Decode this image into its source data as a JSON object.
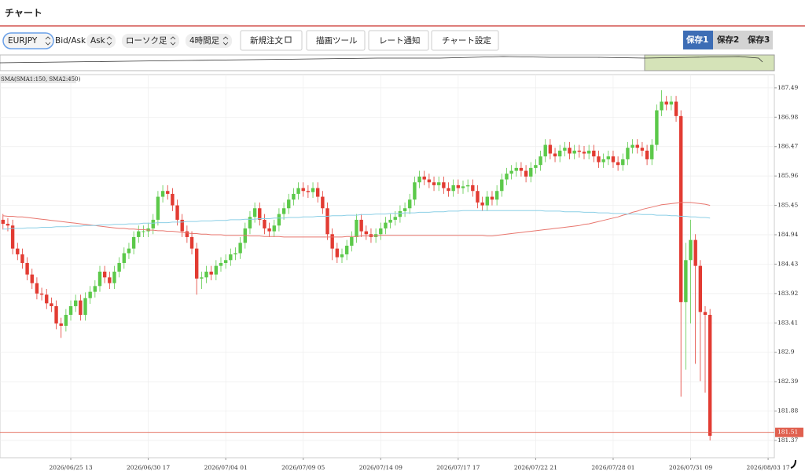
{
  "header": {
    "title": "チャート"
  },
  "toolbar": {
    "symbol": "EURJPY",
    "price_type_label": "Bid/Ask",
    "price_type": "Ask",
    "chart_style": "ローソク足",
    "timeframe": "4時間足",
    "buttons": [
      "新規注文",
      "描画ツール",
      "レート通知",
      "チャート設定"
    ],
    "saves": [
      "保存1",
      "保存2",
      "保存3"
    ]
  },
  "chart_data": {
    "type": "candlestick",
    "indicator_label": "SMA(SMA1:150, SMA2:450)",
    "categories": [
      null,
      null,
      null,
      null,
      null,
      null,
      null,
      null,
      null,
      null,
      null,
      null,
      null,
      null,
      "2026/06/25 13",
      null,
      null,
      null,
      null,
      null,
      null,
      null,
      null,
      null,
      null,
      null,
      null,
      null,
      null,
      null,
      "2026/06/30 17",
      null,
      null,
      null,
      null,
      null,
      null,
      null,
      null,
      null,
      null,
      null,
      null,
      null,
      null,
      null,
      "2026/07/04 01",
      null,
      null,
      null,
      null,
      null,
      null,
      null,
      null,
      null,
      null,
      null,
      null,
      null,
      null,
      null,
      "2026/07/09 05",
      null,
      null,
      null,
      null,
      null,
      null,
      null,
      null,
      null,
      null,
      null,
      null,
      null,
      null,
      null,
      "2026/07/14 09",
      null,
      null,
      null,
      null,
      null,
      null,
      null,
      null,
      null,
      null,
      null,
      null,
      null,
      null,
      null,
      "2026/07/17 17",
      null,
      null,
      null,
      null,
      null,
      null,
      null,
      null,
      null,
      null,
      null,
      null,
      null,
      null,
      null,
      "2026/07/22 21",
      null,
      null,
      null,
      null,
      null,
      null,
      null,
      null,
      null,
      null,
      null,
      null,
      null,
      null,
      null,
      "2026/07/28 01",
      null,
      null,
      null,
      null,
      null,
      null,
      null,
      null,
      null,
      null,
      null,
      null,
      null,
      null,
      null,
      "2026/07/31 09",
      null,
      null,
      null,
      null,
      null,
      null,
      null,
      null,
      null,
      null,
      null,
      null,
      null,
      null,
      null,
      "2026/08/03 17"
    ],
    "open": [
      185.2,
      185.13,
      185.1,
      184.7,
      184.6,
      184.45,
      184.25,
      184.1,
      183.92,
      183.9,
      183.75,
      183.7,
      183.4,
      183.36,
      183.55,
      183.7,
      183.8,
      183.55,
      183.84,
      183.95,
      184.05,
      184.3,
      184.2,
      184.1,
      184.3,
      184.45,
      184.62,
      184.7,
      184.9,
      185.0,
      185.0,
      185.05,
      185.2,
      185.6,
      185.7,
      185.65,
      185.45,
      185.2,
      185.0,
      184.9,
      184.7,
      184.18,
      184.2,
      184.3,
      184.25,
      184.4,
      184.45,
      184.5,
      184.6,
      184.62,
      184.8,
      185.05,
      185.25,
      185.4,
      185.2,
      185.05,
      185.0,
      185.1,
      185.3,
      185.4,
      185.55,
      185.65,
      185.75,
      185.7,
      185.68,
      185.75,
      185.6,
      185.4,
      184.95,
      184.7,
      184.55,
      184.6,
      184.75,
      184.9,
      185.2,
      185.0,
      184.95,
      184.9,
      184.95,
      185.05,
      185.15,
      185.2,
      185.25,
      185.35,
      185.4,
      185.55,
      185.85,
      185.95,
      185.9,
      185.85,
      185.8,
      185.85,
      185.75,
      185.7,
      185.8,
      185.75,
      185.78,
      185.8,
      185.7,
      185.5,
      185.45,
      185.6,
      185.55,
      185.7,
      185.9,
      186.0,
      186.05,
      186.1,
      186.05,
      185.95,
      186.1,
      186.15,
      186.3,
      186.5,
      186.35,
      186.3,
      186.4,
      186.45,
      186.35,
      186.4,
      186.38,
      186.35,
      186.4,
      186.3,
      186.2,
      186.25,
      186.3,
      186.2,
      186.15,
      186.25,
      186.45,
      186.5,
      186.45,
      186.4,
      186.25,
      186.5,
      187.1,
      187.25,
      187.2,
      187.25,
      187.0,
      183.77,
      184.5,
      184.85,
      184.4,
      183.6,
      183.55,
      null,
      null,
      null,
      null,
      null,
      null,
      null,
      null,
      null,
      null,
      null,
      null
    ],
    "high": [
      185.3,
      185.23,
      185.2,
      184.8,
      184.7,
      184.55,
      184.35,
      184.2,
      184.02,
      184.0,
      183.85,
      183.8,
      183.5,
      183.65,
      183.8,
      183.9,
      183.9,
      183.94,
      184.05,
      184.15,
      184.4,
      184.4,
      184.3,
      184.4,
      184.55,
      184.72,
      184.8,
      185.0,
      185.1,
      185.1,
      185.15,
      185.3,
      185.7,
      185.8,
      185.8,
      185.75,
      185.55,
      185.3,
      185.1,
      185.0,
      184.8,
      184.3,
      184.4,
      184.4,
      184.5,
      184.55,
      184.6,
      184.7,
      184.72,
      184.9,
      185.15,
      185.35,
      185.5,
      185.5,
      185.3,
      185.15,
      185.2,
      185.4,
      185.5,
      185.65,
      185.75,
      185.85,
      185.85,
      185.8,
      185.85,
      185.85,
      185.7,
      185.5,
      185.05,
      184.8,
      184.7,
      184.85,
      185.0,
      185.3,
      185.3,
      185.1,
      185.05,
      185.05,
      185.15,
      185.25,
      185.3,
      185.35,
      185.45,
      185.5,
      185.65,
      185.95,
      186.05,
      186.05,
      186.0,
      185.95,
      185.95,
      185.95,
      185.85,
      185.9,
      185.9,
      185.88,
      185.9,
      185.9,
      185.8,
      185.6,
      185.7,
      185.7,
      185.8,
      186.0,
      186.1,
      186.15,
      186.2,
      186.2,
      186.15,
      186.2,
      186.25,
      186.4,
      186.6,
      186.6,
      186.45,
      186.5,
      186.55,
      186.55,
      186.5,
      186.5,
      186.48,
      186.5,
      186.5,
      186.4,
      186.35,
      186.4,
      186.4,
      186.3,
      186.35,
      186.55,
      186.6,
      186.6,
      186.55,
      186.5,
      186.6,
      187.2,
      187.45,
      187.35,
      187.35,
      187.35,
      187.1,
      184.8,
      185.2,
      184.95,
      184.5,
      183.7,
      183.65,
      null,
      null,
      null,
      null,
      null,
      null,
      null,
      null,
      null,
      null,
      null,
      null
    ],
    "low": [
      185.03,
      185.0,
      184.6,
      184.5,
      184.35,
      184.15,
      184.0,
      183.82,
      183.8,
      183.65,
      183.6,
      183.3,
      183.15,
      183.26,
      183.45,
      183.6,
      183.45,
      183.45,
      183.74,
      183.85,
      183.95,
      184.1,
      184.0,
      184.0,
      184.2,
      184.35,
      184.52,
      184.6,
      184.8,
      184.9,
      184.9,
      184.95,
      185.1,
      185.5,
      185.55,
      185.35,
      185.1,
      184.9,
      184.8,
      184.6,
      183.9,
      184.0,
      184.1,
      184.15,
      184.15,
      184.3,
      184.35,
      184.4,
      184.5,
      184.52,
      184.7,
      184.95,
      185.15,
      185.1,
      184.95,
      184.9,
      184.9,
      185.0,
      185.2,
      185.3,
      185.45,
      185.55,
      185.6,
      185.58,
      185.58,
      185.5,
      185.3,
      184.85,
      184.5,
      184.45,
      184.45,
      184.5,
      184.65,
      184.8,
      184.9,
      184.85,
      184.8,
      184.8,
      184.85,
      184.95,
      185.05,
      185.1,
      185.15,
      185.25,
      185.3,
      185.45,
      185.75,
      185.8,
      185.75,
      185.7,
      185.7,
      185.65,
      185.6,
      185.6,
      185.65,
      185.65,
      185.68,
      185.6,
      185.4,
      185.35,
      185.35,
      185.45,
      185.45,
      185.6,
      185.8,
      185.9,
      185.95,
      185.95,
      185.85,
      185.85,
      186.0,
      186.05,
      186.2,
      186.25,
      186.2,
      186.2,
      186.3,
      186.25,
      186.25,
      186.28,
      186.25,
      186.25,
      186.2,
      186.1,
      186.1,
      186.15,
      186.1,
      186.05,
      186.05,
      186.15,
      186.35,
      186.35,
      186.3,
      186.15,
      186.15,
      186.4,
      187.0,
      187.1,
      187.1,
      186.9,
      182.13,
      182.6,
      183.4,
      182.7,
      182.4,
      182.2,
      181.37,
      null,
      null,
      null,
      null,
      null,
      null,
      null,
      null,
      null,
      null,
      null,
      null
    ],
    "close": [
      185.13,
      185.1,
      184.7,
      184.6,
      184.45,
      184.25,
      184.1,
      183.92,
      183.9,
      183.75,
      183.7,
      183.4,
      183.36,
      183.55,
      183.7,
      183.8,
      183.55,
      183.84,
      183.95,
      184.05,
      184.3,
      184.2,
      184.1,
      184.3,
      184.45,
      184.62,
      184.7,
      184.9,
      185.0,
      185.0,
      185.05,
      185.2,
      185.6,
      185.7,
      185.65,
      185.45,
      185.2,
      185.0,
      184.9,
      184.7,
      184.18,
      184.2,
      184.3,
      184.25,
      184.4,
      184.45,
      184.5,
      184.6,
      184.62,
      184.8,
      185.05,
      185.25,
      185.4,
      185.2,
      185.05,
      185.0,
      185.1,
      185.3,
      185.4,
      185.55,
      185.65,
      185.75,
      185.7,
      185.68,
      185.75,
      185.6,
      185.4,
      184.95,
      184.7,
      184.55,
      184.6,
      184.75,
      184.9,
      185.2,
      185.0,
      184.95,
      184.9,
      184.95,
      185.05,
      185.15,
      185.2,
      185.25,
      185.35,
      185.4,
      185.55,
      185.85,
      185.95,
      185.9,
      185.85,
      185.8,
      185.85,
      185.75,
      185.7,
      185.8,
      185.75,
      185.78,
      185.8,
      185.7,
      185.5,
      185.45,
      185.6,
      185.55,
      185.7,
      185.9,
      186.0,
      186.05,
      186.1,
      186.05,
      185.95,
      186.1,
      186.15,
      186.3,
      186.5,
      186.35,
      186.3,
      186.4,
      186.45,
      186.35,
      186.4,
      186.38,
      186.35,
      186.4,
      186.3,
      186.2,
      186.25,
      186.3,
      186.2,
      186.15,
      186.25,
      186.45,
      186.5,
      186.45,
      186.4,
      186.25,
      186.5,
      187.1,
      187.25,
      187.2,
      187.25,
      187.0,
      183.77,
      184.5,
      184.85,
      184.4,
      183.6,
      183.55,
      181.45,
      null,
      null,
      null,
      null,
      null,
      null,
      null,
      null,
      null,
      null,
      null,
      null
    ],
    "up_color": "#5cc94a",
    "down_color": "#e23b32",
    "series": [
      {
        "color": "#e8766e",
        "values": [
          185.27,
          185.26,
          185.26,
          185.25,
          185.25,
          185.24,
          185.23,
          185.22,
          185.21,
          185.2,
          185.19,
          185.18,
          185.17,
          185.16,
          185.15,
          185.14,
          185.13,
          185.12,
          185.11,
          185.1,
          185.09,
          185.08,
          185.07,
          185.06,
          185.05,
          185.05,
          185.04,
          185.04,
          185.03,
          185.03,
          185.02,
          185.02,
          185.01,
          185.01,
          185.0,
          185.0,
          184.99,
          184.98,
          184.97,
          184.96,
          184.96,
          184.95,
          184.95,
          184.94,
          184.94,
          184.94,
          184.93,
          184.93,
          184.93,
          184.93,
          184.93,
          184.92,
          184.92,
          184.92,
          184.91,
          184.91,
          184.91,
          184.91,
          184.9,
          184.9,
          184.9,
          184.9,
          184.9,
          184.9,
          184.9,
          184.9,
          184.9,
          184.9,
          184.9,
          184.9,
          184.9,
          184.91,
          184.91,
          184.91,
          184.92,
          184.92,
          184.92,
          184.92,
          184.93,
          184.93,
          184.93,
          184.93,
          184.93,
          184.93,
          184.93,
          184.93,
          184.93,
          184.93,
          184.93,
          184.93,
          184.93,
          184.93,
          184.93,
          184.93,
          184.93,
          184.93,
          184.93,
          184.93,
          184.93,
          184.93,
          184.92,
          184.92,
          184.93,
          184.94,
          184.95,
          184.96,
          184.97,
          184.98,
          184.99,
          185.0,
          185.01,
          185.02,
          185.03,
          185.04,
          185.05,
          185.06,
          185.07,
          185.08,
          185.09,
          185.1,
          185.12,
          185.13,
          185.15,
          185.17,
          185.19,
          185.21,
          185.23,
          185.25,
          185.28,
          185.3,
          185.33,
          185.35,
          185.38,
          185.4,
          185.42,
          185.44,
          185.46,
          185.47,
          185.48,
          185.49,
          185.5,
          185.5,
          185.5,
          185.49,
          185.48,
          185.47,
          185.45,
          null,
          null,
          null,
          null,
          null,
          null,
          null,
          null,
          null,
          null,
          null,
          null
        ]
      },
      {
        "color": "#8ccfe6",
        "values": [
          185.04,
          185.04,
          185.05,
          185.05,
          185.05,
          185.06,
          185.06,
          185.06,
          185.07,
          185.07,
          185.07,
          185.08,
          185.08,
          185.08,
          185.09,
          185.09,
          185.09,
          185.1,
          185.1,
          185.1,
          185.11,
          185.11,
          185.11,
          185.12,
          185.12,
          185.12,
          185.13,
          185.13,
          185.13,
          185.14,
          185.14,
          185.14,
          185.15,
          185.15,
          185.15,
          185.16,
          185.16,
          185.16,
          185.17,
          185.17,
          185.17,
          185.18,
          185.18,
          185.18,
          185.19,
          185.19,
          185.19,
          185.2,
          185.2,
          185.2,
          185.21,
          185.21,
          185.21,
          185.22,
          185.22,
          185.22,
          185.23,
          185.23,
          185.23,
          185.24,
          185.24,
          185.24,
          185.25,
          185.25,
          185.25,
          185.26,
          185.26,
          185.26,
          185.27,
          185.27,
          185.27,
          185.28,
          185.28,
          185.28,
          185.29,
          185.29,
          185.29,
          185.3,
          185.3,
          185.3,
          185.31,
          185.31,
          185.31,
          185.32,
          185.32,
          185.32,
          185.33,
          185.33,
          185.33,
          185.34,
          185.34,
          185.34,
          185.35,
          185.35,
          185.35,
          185.36,
          185.36,
          185.36,
          185.36,
          185.36,
          185.36,
          185.36,
          185.36,
          185.36,
          185.36,
          185.36,
          185.36,
          185.36,
          185.36,
          185.36,
          185.36,
          185.36,
          185.35,
          185.35,
          185.35,
          185.35,
          185.34,
          185.34,
          185.34,
          185.34,
          185.33,
          185.33,
          185.33,
          185.32,
          185.32,
          185.32,
          185.31,
          185.31,
          185.31,
          185.3,
          185.3,
          185.3,
          185.29,
          185.29,
          185.29,
          185.28,
          185.28,
          185.28,
          185.27,
          185.27,
          185.26,
          185.26,
          185.25,
          185.25,
          185.24,
          185.24,
          185.23,
          null,
          null,
          null,
          null,
          null,
          null,
          null,
          null,
          null,
          null,
          null,
          null
        ]
      }
    ],
    "ylim": [
      181.07,
      187.72
    ],
    "yticks": [
      187.49,
      186.98,
      186.47,
      185.96,
      185.45,
      184.94,
      184.43,
      183.92,
      183.41,
      182.9,
      182.39,
      181.88,
      181.37
    ],
    "current_price": 181.51,
    "current_color": "#e0604f",
    "grid": true
  }
}
